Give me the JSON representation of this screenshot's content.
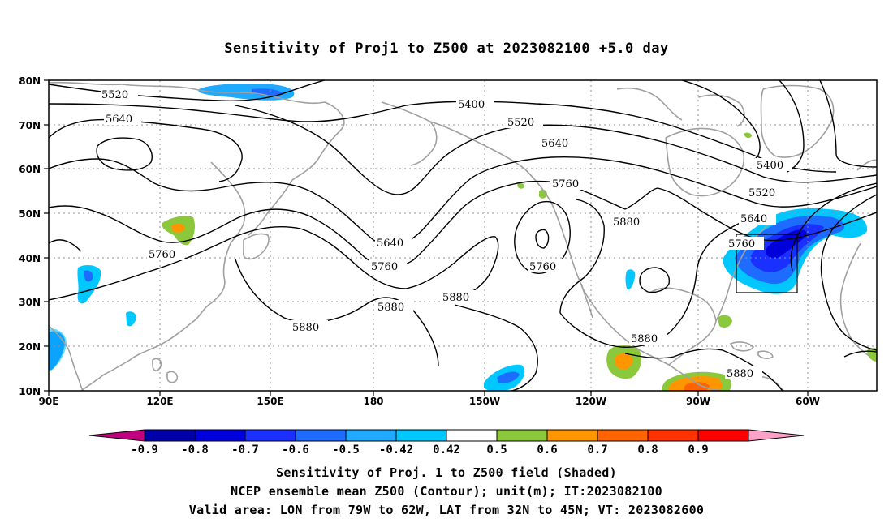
{
  "title": "Sensitivity of Proj1 to Z500 at 2023082100 +5.0 day",
  "axes": {
    "lon_ticks": [
      "90E",
      "120E",
      "150E",
      "180",
      "150W",
      "120W",
      "90W",
      "60W"
    ],
    "lat_ticks": [
      "80N",
      "70N",
      "60N",
      "50N",
      "40N",
      "30N",
      "20N",
      "10N"
    ]
  },
  "contour_labels": [
    "5520",
    "5640",
    "5400",
    "5520",
    "5640",
    "5760",
    "5400",
    "5520",
    "5640",
    "5760",
    "5760",
    "5640",
    "5760",
    "5880",
    "5880",
    "5880",
    "5760",
    "5880",
    "5880",
    "5880"
  ],
  "colorbar": {
    "labels": [
      "-0.9",
      "-0.8",
      "-0.7",
      "-0.6",
      "-0.5",
      "-0.42",
      "0.42",
      "0.5",
      "0.6",
      "0.7",
      "0.8",
      "0.9"
    ],
    "colors": [
      "#c0007f",
      "#0000a8",
      "#0000dc",
      "#1a30ff",
      "#1e6cff",
      "#1faaff",
      "#00c8ff",
      "#ffffff",
      "#8cc83c",
      "#ff9600",
      "#ff6400",
      "#ff3200",
      "#ff0000",
      "#ffa0c8"
    ]
  },
  "captions": [
    "Sensitivity of Proj. 1 to Z500 field (Shaded)",
    "NCEP ensemble mean Z500 (Contour); unit(m); IT:2023082100",
    "Valid area: LON from 79W to 62W, LAT from 32N to 45N; VT: 2023082600"
  ],
  "valid_area": {
    "lon_min": "79W",
    "lon_max": "62W",
    "lat_min": "32N",
    "lat_max": "45N"
  },
  "sensitivity_colors": {
    "blue_dark": "#1a30ff",
    "blue_mid": "#1e6cff",
    "blue_light": "#1faaff",
    "cyan": "#00c8ff",
    "green": "#8cc83c",
    "orange": "#ff9600",
    "orange_red": "#ff6400"
  }
}
